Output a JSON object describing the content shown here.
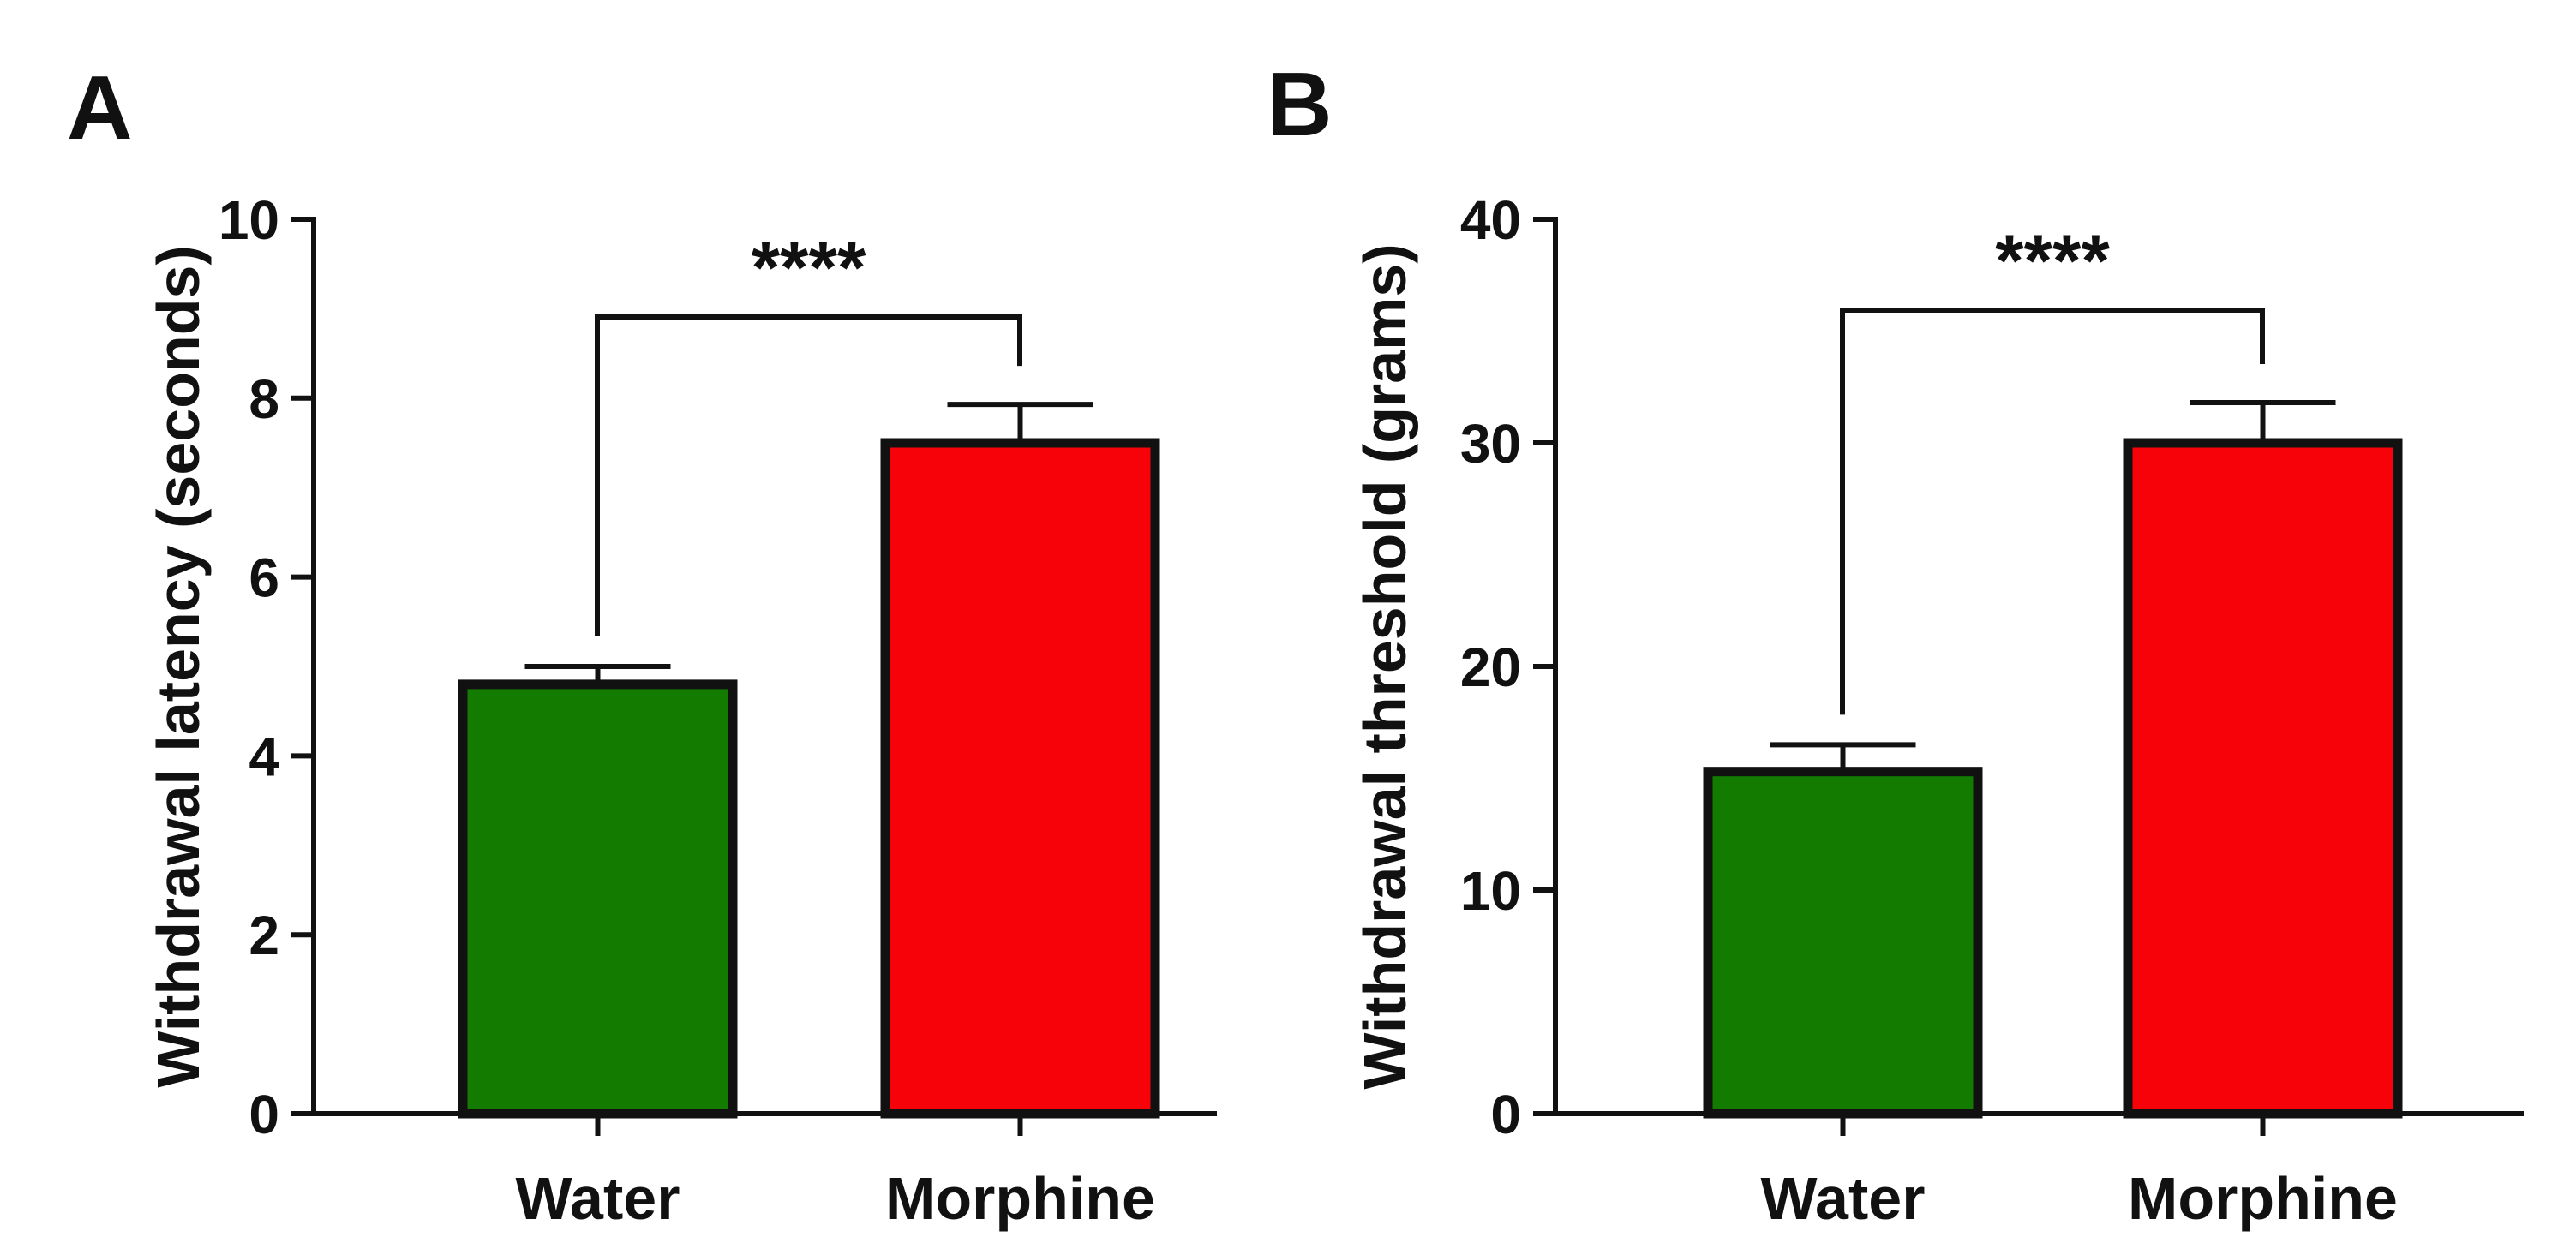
{
  "colors": {
    "water": "#127b00",
    "morphine": "#f60208",
    "ink": "#111111"
  },
  "chart_data": [
    {
      "type": "bar",
      "panel": "A",
      "title": "",
      "xlabel": "",
      "ylabel": "Withdrawal latency (seconds)",
      "ylim": [
        0,
        10
      ],
      "yticks": [
        0,
        2,
        4,
        6,
        8,
        10
      ],
      "ytick_labels": [
        "0",
        "2",
        "4",
        "6",
        "8",
        "10"
      ],
      "categories": [
        "Water",
        "Morphine"
      ],
      "values": [
        4.8,
        7.5
      ],
      "errors": [
        0.2,
        0.43
      ],
      "significance": {
        "label": "****",
        "between": [
          "Water",
          "Morphine"
        ]
      },
      "grid": false
    },
    {
      "type": "bar",
      "panel": "B",
      "title": "",
      "xlabel": "",
      "ylabel": "Withdrawal threshold (grams)",
      "ylim": [
        0,
        40
      ],
      "yticks": [
        0,
        10,
        20,
        30,
        40
      ],
      "ytick_labels": [
        "0",
        "10",
        "20",
        "30",
        "40"
      ],
      "categories": [
        "Water",
        "Morphine"
      ],
      "values": [
        15.3,
        30.0
      ],
      "errors": [
        1.2,
        1.8
      ],
      "significance": {
        "label": "****",
        "between": [
          "Water",
          "Morphine"
        ]
      },
      "grid": false
    }
  ]
}
